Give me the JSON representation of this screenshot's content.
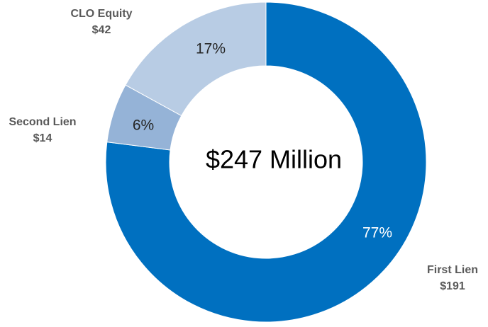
{
  "chart_data": {
    "type": "donut",
    "center_label": "$247 Million",
    "categories": [
      "First Lien",
      "Second Lien",
      "CLO Equity"
    ],
    "values": [
      77,
      6,
      17
    ],
    "value_labels": [
      "77%",
      "6%",
      "17%"
    ],
    "amounts": [
      191,
      14,
      42
    ],
    "amount_labels": [
      "$191",
      "$14",
      "$42"
    ],
    "colors": [
      "#0070c0",
      "#95b3d7",
      "#b8cce4"
    ]
  }
}
